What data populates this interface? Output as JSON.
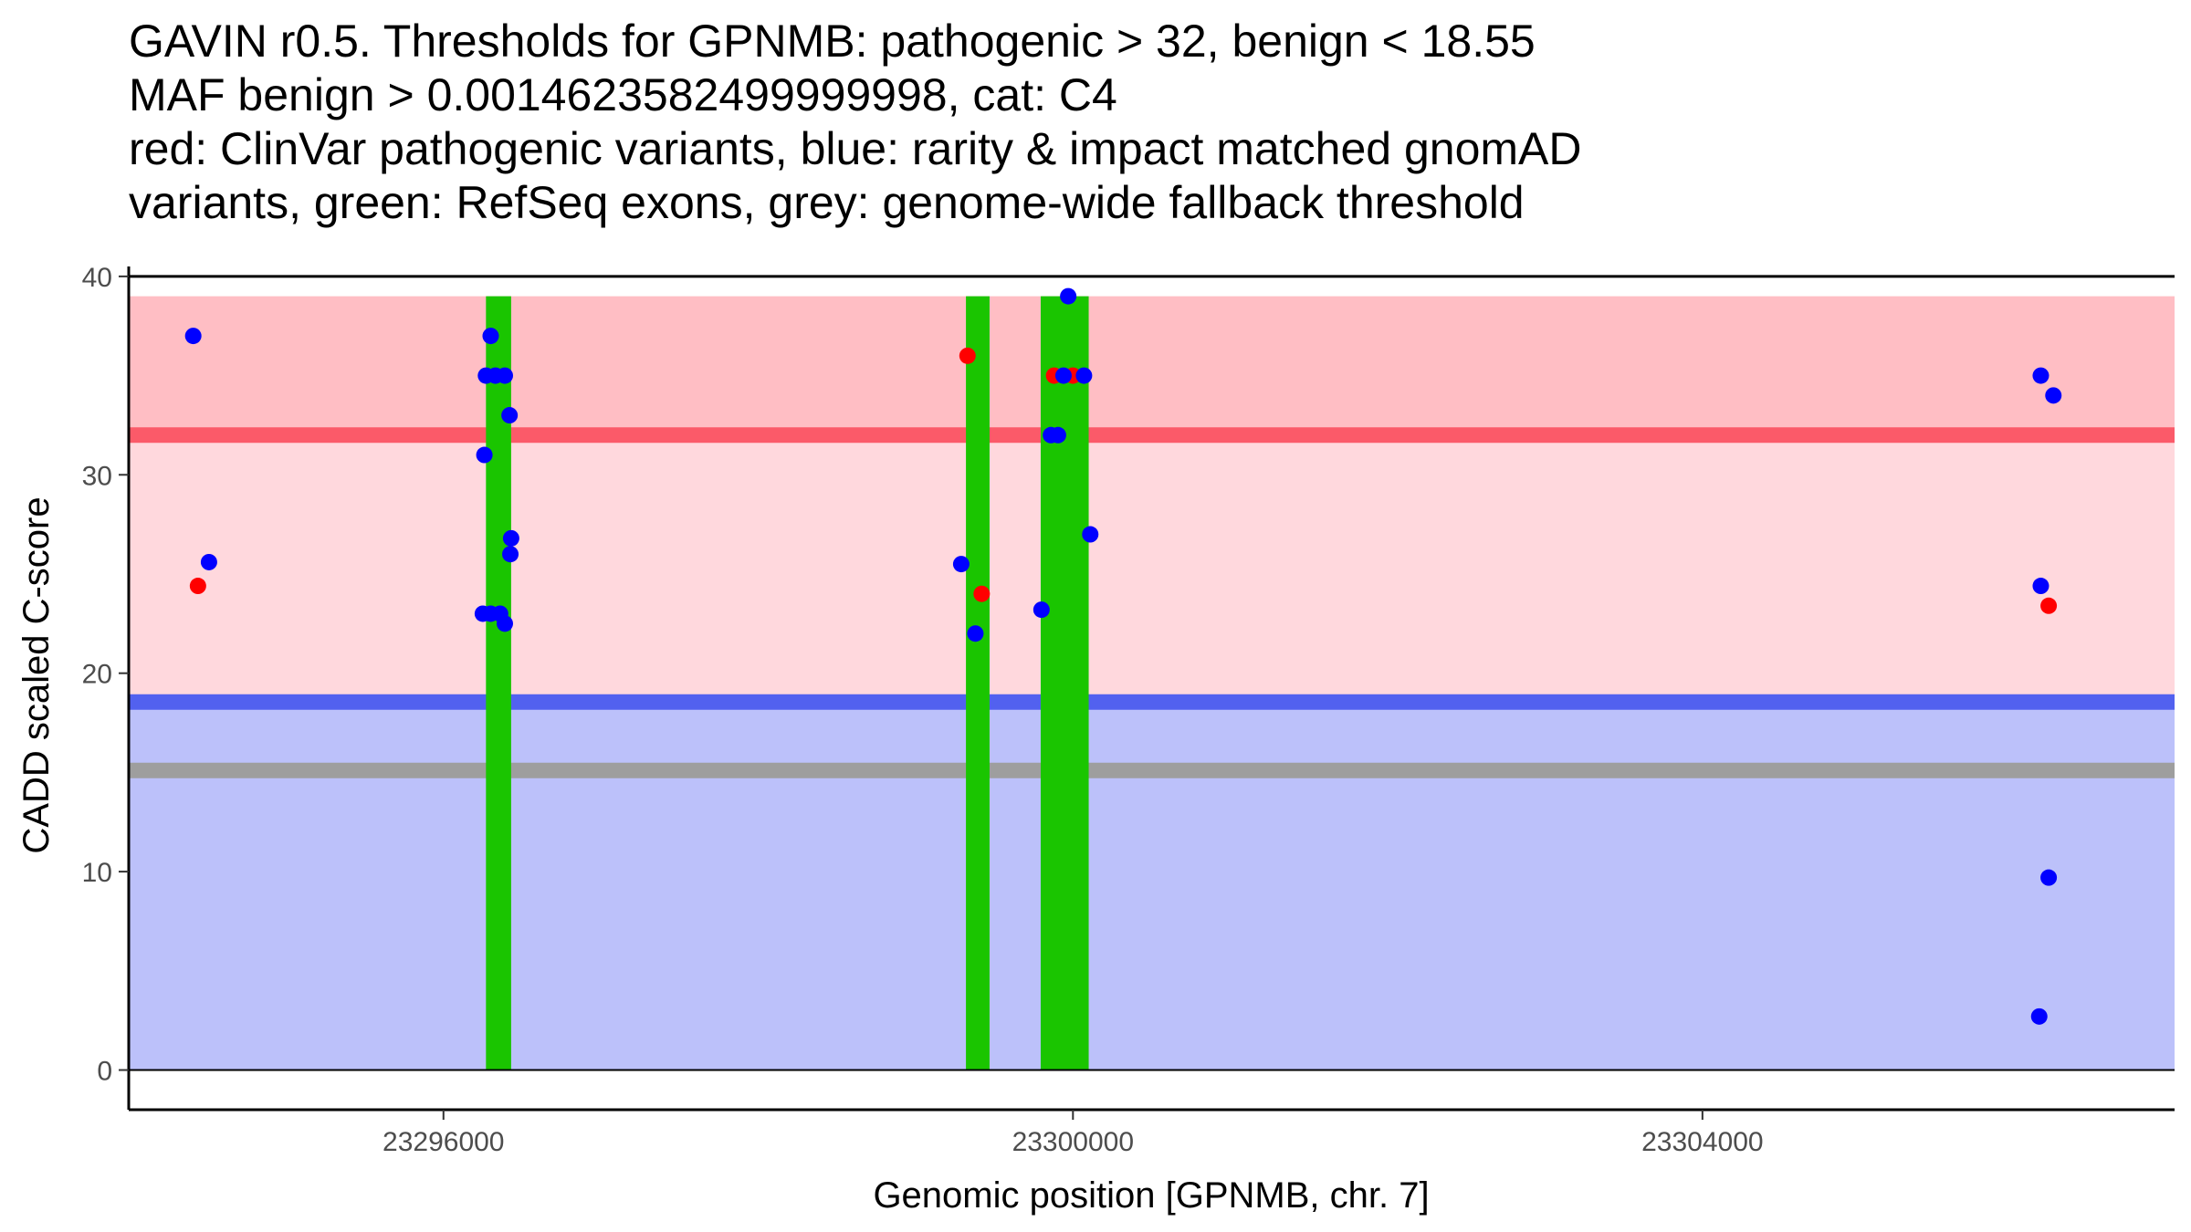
{
  "chart_data": {
    "type": "scatter",
    "title_lines": [
      "GAVIN r0.5. Thresholds for GPNMB: pathogenic > 32, benign < 18.55",
      "MAF benign > 0.0014623582499999998, cat: C4",
      "red: ClinVar pathogenic variants, blue: rarity & impact matched gnomAD",
      "variants, green: RefSeq exons, grey: genome-wide fallback threshold"
    ],
    "xlabel": "Genomic position [GPNMB, chr. 7]",
    "ylabel": "CADD scaled C-score",
    "xlim": [
      23294000,
      23307000
    ],
    "ylim": [
      -2,
      40.5
    ],
    "x_ticks": [
      23296000,
      23300000,
      23304000
    ],
    "x_tick_labels": [
      "23296000",
      "23300000",
      "23304000"
    ],
    "y_ticks": [
      0,
      10,
      20,
      30,
      40
    ],
    "y_tick_labels": [
      "0",
      "10",
      "20",
      "30",
      "40"
    ],
    "regions": {
      "pathogenic": {
        "from": 32,
        "to": 39,
        "color": "#ffbec4"
      },
      "mid": {
        "from": 18.55,
        "to": 32,
        "color": "#ffd8dd"
      },
      "benign": {
        "from": 0,
        "to": 18.55,
        "color": "#bcc1fa"
      }
    },
    "threshold_lines": [
      {
        "name": "pathogenic",
        "value": 32,
        "color": "#fb5a69"
      },
      {
        "name": "benign",
        "value": 18.55,
        "color": "#5261ef"
      },
      {
        "name": "genome-wide-fallback",
        "value": 15.1,
        "color": "#9e9e9e"
      }
    ],
    "exons": [
      {
        "start": 23296270,
        "end": 23296430,
        "color": "#1ac500"
      },
      {
        "start": 23299320,
        "end": 23299470,
        "color": "#1ac500"
      },
      {
        "start": 23299795,
        "end": 23300100,
        "color": "#1ac500"
      }
    ],
    "exon_y_range": [
      0,
      39
    ],
    "series": [
      {
        "name": "ClinVar pathogenic variants",
        "color": "#ff0000",
        "points": [
          [
            23294440,
            24.4
          ],
          [
            23299330,
            36.0
          ],
          [
            23299420,
            24.0
          ],
          [
            23299880,
            35.0
          ],
          [
            23300000,
            35.0
          ],
          [
            23306200,
            23.4
          ]
        ]
      },
      {
        "name": "rarity & impact matched gnomAD variants",
        "color": "#0000ff",
        "points": [
          [
            23294410,
            37.0
          ],
          [
            23294510,
            25.6
          ],
          [
            23296270,
            35.0
          ],
          [
            23296300,
            37.0
          ],
          [
            23296330,
            35.0
          ],
          [
            23296390,
            35.0
          ],
          [
            23296260,
            31.0
          ],
          [
            23296420,
            33.0
          ],
          [
            23296430,
            26.8
          ],
          [
            23296425,
            26.0
          ],
          [
            23296250,
            23.0
          ],
          [
            23296300,
            23.0
          ],
          [
            23296360,
            23.0
          ],
          [
            23296390,
            22.5
          ],
          [
            23299290,
            25.5
          ],
          [
            23299380,
            22.0
          ],
          [
            23299800,
            23.2
          ],
          [
            23299860,
            32.0
          ],
          [
            23299905,
            32.0
          ],
          [
            23299940,
            35.0
          ],
          [
            23299970,
            39.0
          ],
          [
            23300070,
            35.0
          ],
          [
            23300110,
            27.0
          ],
          [
            23306150,
            35.0
          ],
          [
            23306230,
            34.0
          ],
          [
            23306150,
            24.4
          ],
          [
            23306200,
            9.7
          ],
          [
            23306140,
            2.7
          ]
        ]
      }
    ]
  }
}
